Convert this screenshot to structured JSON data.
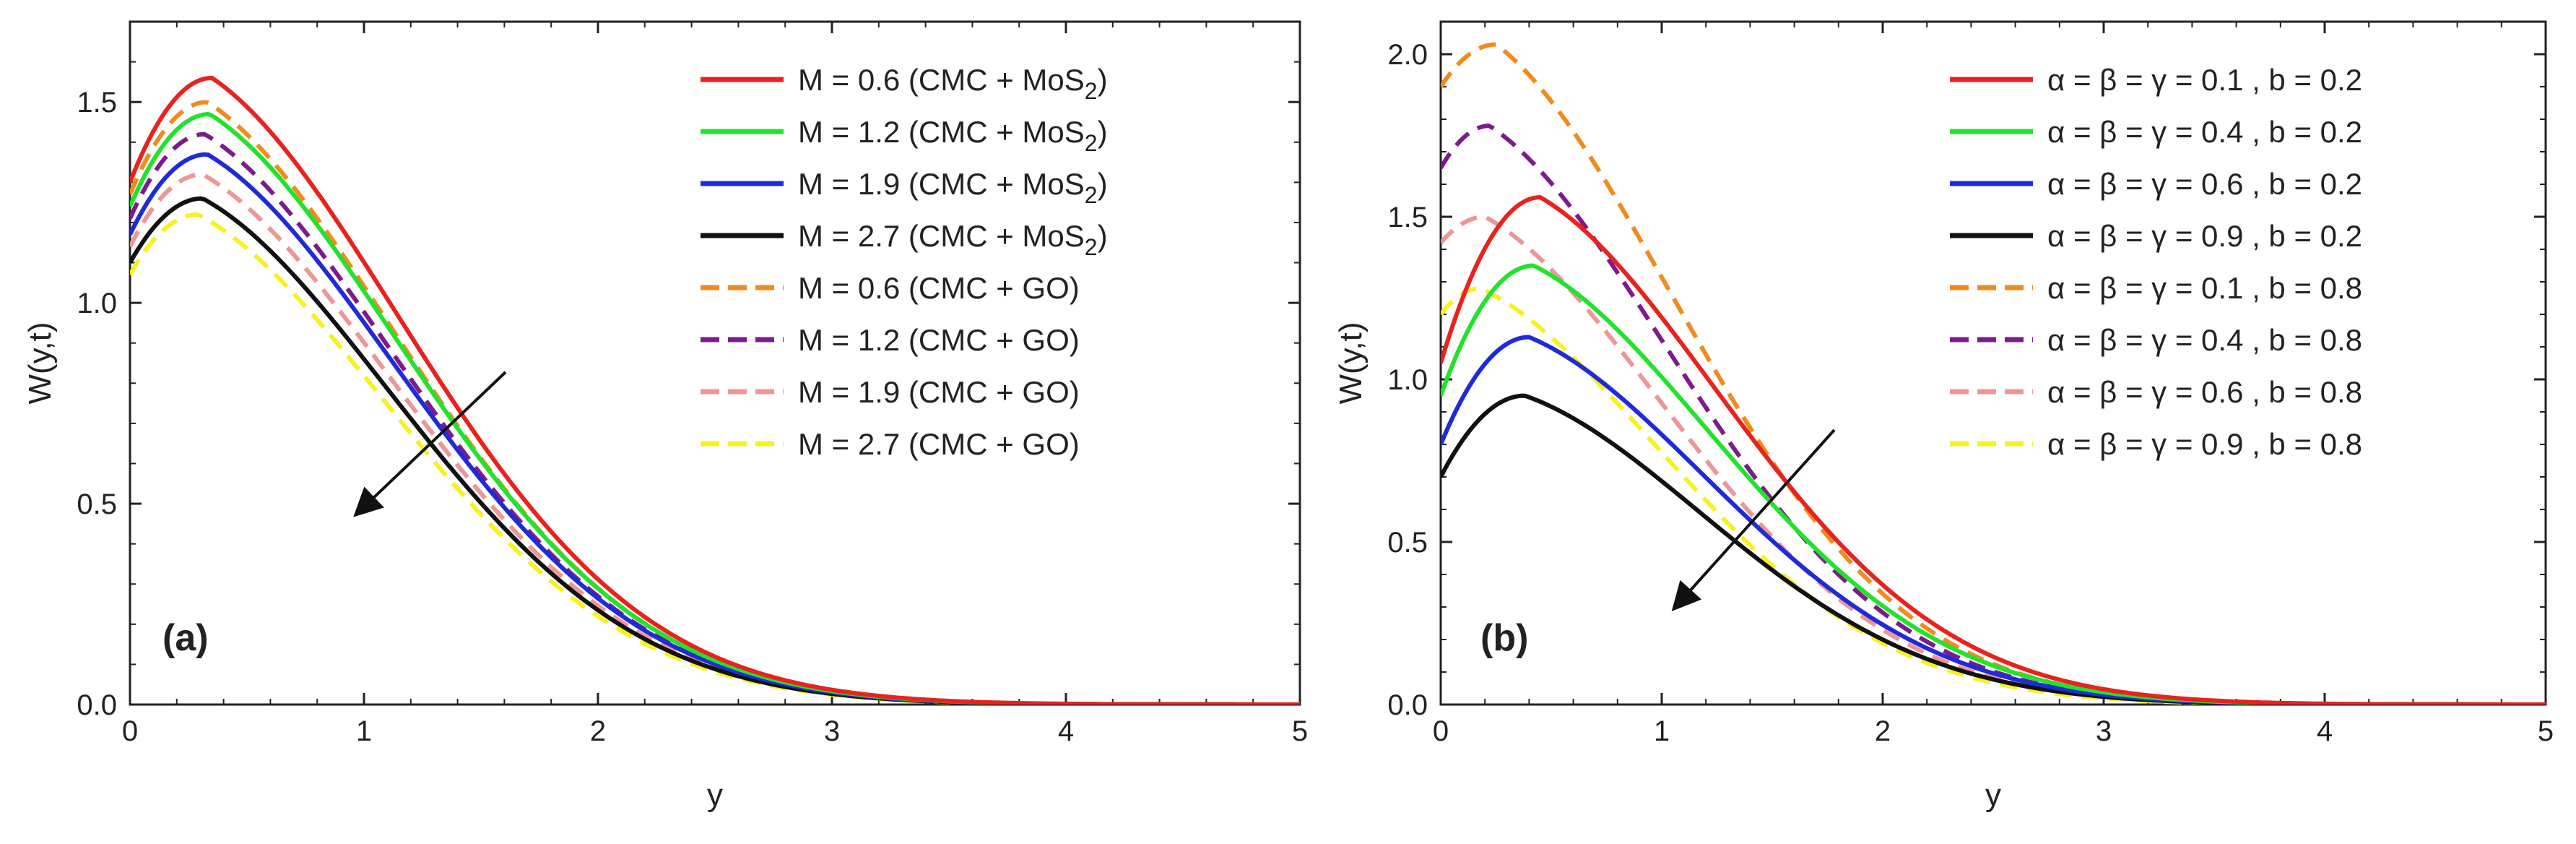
{
  "chart_data": [
    {
      "type": "line",
      "panel_label": "(a)",
      "xlabel": "y",
      "ylabel": "W(y,t)",
      "xlim": [
        0,
        5
      ],
      "ylim": [
        0,
        1.7
      ],
      "xticks": [
        "0",
        "1",
        "2",
        "3",
        "4",
        "5"
      ],
      "yticks": [
        "0.0",
        "0.5",
        "1.0",
        "1.5"
      ],
      "ytick_values": [
        0,
        0.5,
        1.0,
        1.5
      ],
      "legend_position": "top-right",
      "annotation": "arrow pointing down-left, indicating decrease with increasing M",
      "series": [
        {
          "name": "M = 0.6  (CMC + MoS",
          "sub": "2",
          "name_end": ")",
          "color": "#e8231e",
          "dash": "solid",
          "w0": 1.3,
          "peak": 1.56,
          "ypk": 0.35
        },
        {
          "name": "M = 1.2  (CMC + MoS",
          "sub": "2",
          "name_end": ")",
          "color": "#22e22c",
          "dash": "solid",
          "w0": 1.24,
          "peak": 1.47,
          "ypk": 0.34
        },
        {
          "name": "M = 1.9  (CMC + MoS",
          "sub": "2",
          "name_end": ")",
          "color": "#1f2bd8",
          "dash": "solid",
          "w0": 1.17,
          "peak": 1.37,
          "ypk": 0.33
        },
        {
          "name": "M = 2.7  (CMC + MoS",
          "sub": "2",
          "name_end": ")",
          "color": "#111111",
          "dash": "solid",
          "w0": 1.1,
          "peak": 1.26,
          "ypk": 0.31
        },
        {
          "name": "M = 0.6  (CMC + GO)",
          "sub": "",
          "name_end": "",
          "color": "#f28a1c",
          "dash": "dashed",
          "w0": 1.27,
          "peak": 1.5,
          "ypk": 0.33
        },
        {
          "name": "M = 1.2  (CMC + GO)",
          "sub": "",
          "name_end": "",
          "color": "#7d1a8c",
          "dash": "dashed",
          "w0": 1.21,
          "peak": 1.42,
          "ypk": 0.32
        },
        {
          "name": "M = 1.9  (CMC + GO)",
          "sub": "",
          "name_end": "",
          "color": "#ee9597",
          "dash": "dashed",
          "w0": 1.14,
          "peak": 1.32,
          "ypk": 0.31
        },
        {
          "name": "M = 2.7  (CMC + GO)",
          "sub": "",
          "name_end": "",
          "color": "#f7f21f",
          "dash": "dashed",
          "w0": 1.07,
          "peak": 1.22,
          "ypk": 0.29
        }
      ]
    },
    {
      "type": "line",
      "panel_label": "(b)",
      "xlabel": "y",
      "ylabel": "W(y,t)",
      "xlim": [
        0,
        5
      ],
      "ylim": [
        0,
        2.1
      ],
      "xticks": [
        "0",
        "1",
        "2",
        "3",
        "4",
        "5"
      ],
      "yticks": [
        "0.0",
        "0.5",
        "1.0",
        "1.5",
        "2.0"
      ],
      "ytick_values": [
        0,
        0.5,
        1.0,
        1.5,
        2.0
      ],
      "legend_position": "top-right",
      "annotation": "arrow pointing down-left, indicating decrease with increasing α = β = γ",
      "series": [
        {
          "name": "α = β = γ = 0.1  ,  b = 0.2",
          "color": "#e8231e",
          "dash": "solid",
          "w0": 1.05,
          "peak": 1.56,
          "ypk": 0.45
        },
        {
          "name": "α = β = γ = 0.4  ,  b = 0.2",
          "color": "#22e22c",
          "dash": "solid",
          "w0": 0.95,
          "peak": 1.35,
          "ypk": 0.42
        },
        {
          "name": "α = β = γ = 0.6  ,  b = 0.2",
          "color": "#1f2bd8",
          "dash": "solid",
          "w0": 0.8,
          "peak": 1.13,
          "ypk": 0.4
        },
        {
          "name": "α = β = γ = 0.9  ,  b = 0.2",
          "color": "#111111",
          "dash": "solid",
          "w0": 0.7,
          "peak": 0.95,
          "ypk": 0.38
        },
        {
          "name": "α = β = γ = 0.1  ,  b = 0.8",
          "color": "#f28a1c",
          "dash": "dashed",
          "w0": 1.9,
          "peak": 2.03,
          "ypk": 0.25
        },
        {
          "name": "α = β = γ = 0.4  ,  b = 0.8",
          "color": "#7d1a8c",
          "dash": "dashed",
          "w0": 1.65,
          "peak": 1.78,
          "ypk": 0.22
        },
        {
          "name": "α = β = γ = 0.6  ,  b = 0.8",
          "color": "#ee9597",
          "dash": "dashed",
          "w0": 1.42,
          "peak": 1.5,
          "ypk": 0.2
        },
        {
          "name": "α = β = γ = 0.9  ,  b = 0.8",
          "color": "#f7f21f",
          "dash": "dashed",
          "w0": 1.2,
          "peak": 1.28,
          "ypk": 0.18
        }
      ]
    }
  ]
}
